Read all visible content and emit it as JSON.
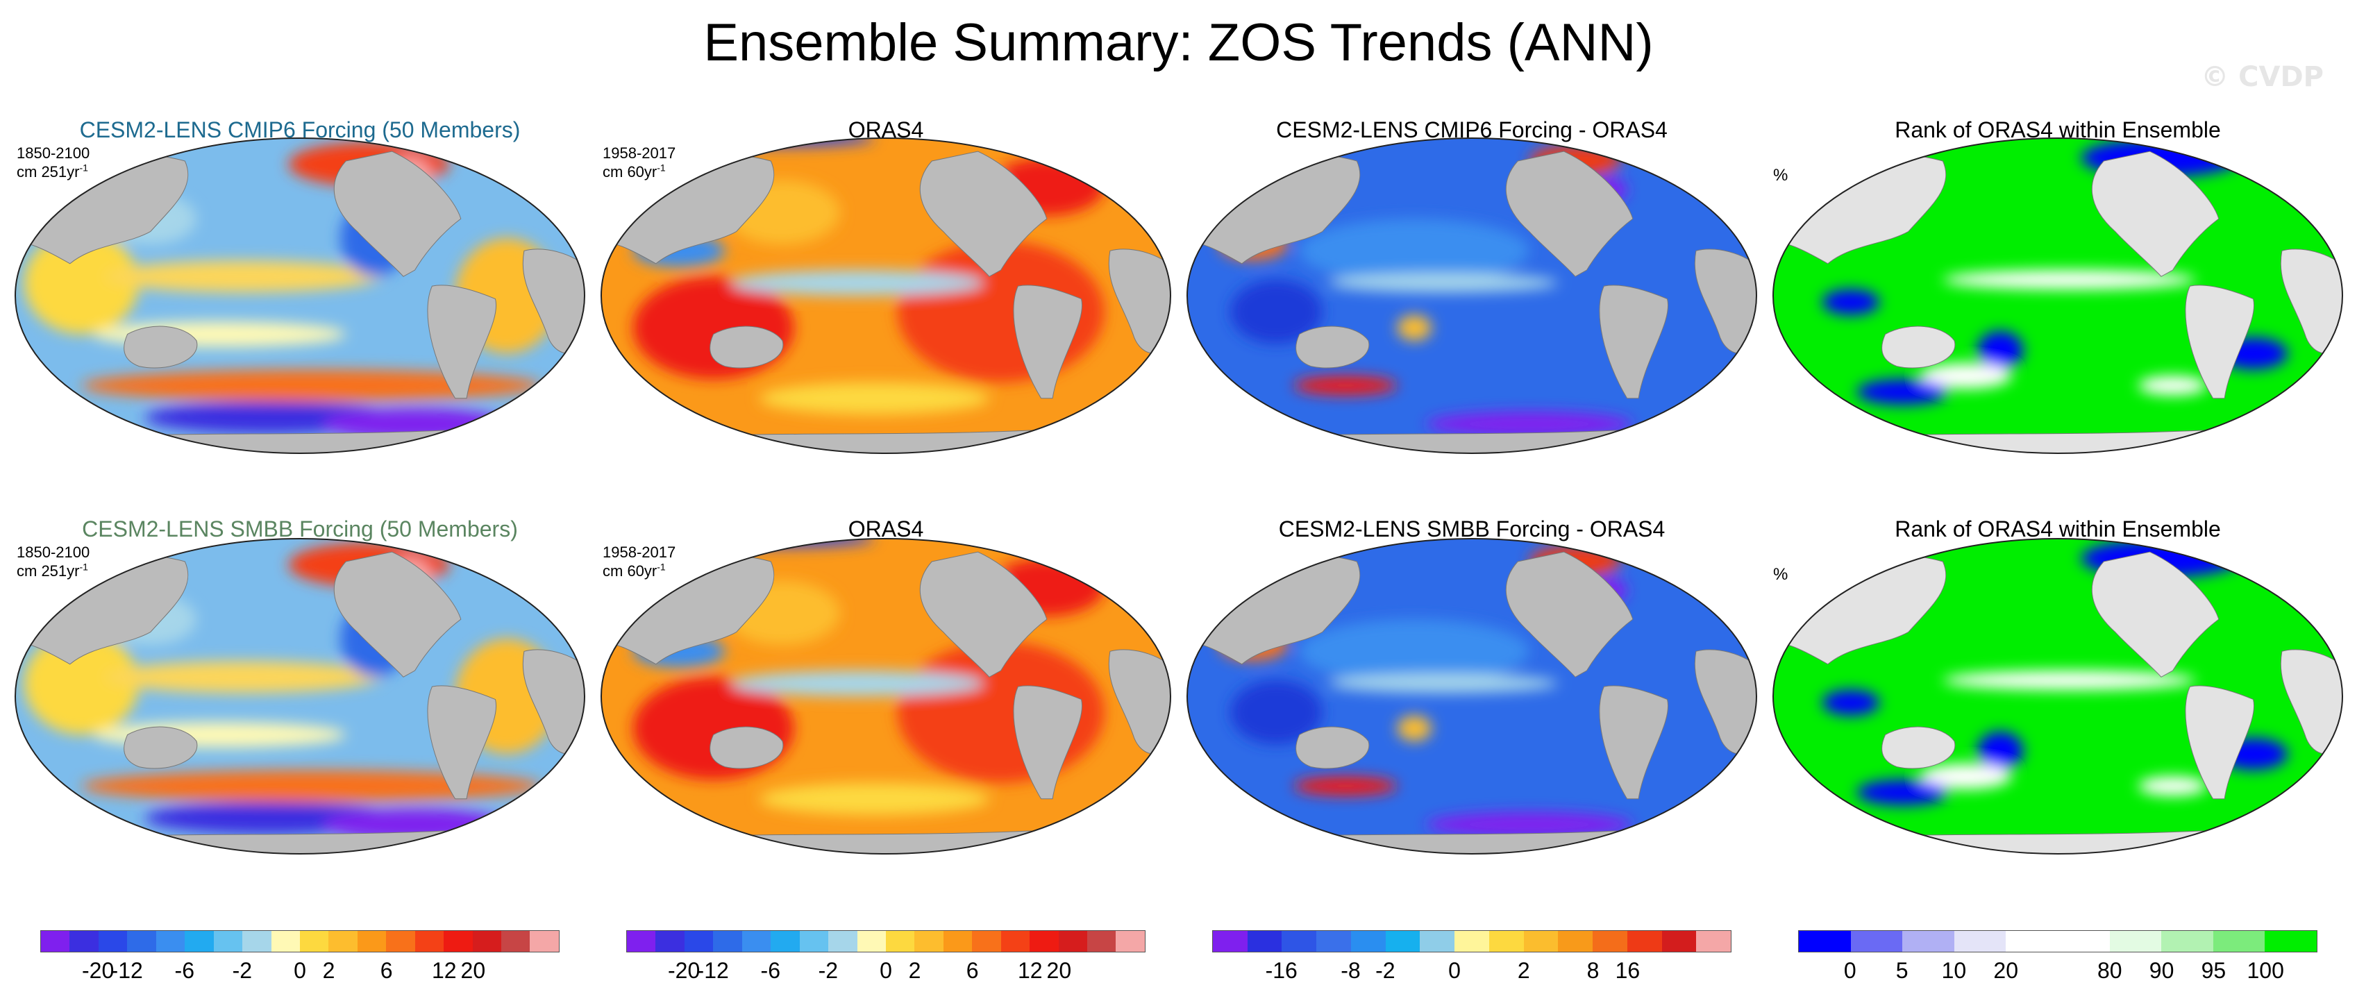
{
  "title": "Ensemble Summary: ZOS Trends (ANN)",
  "watermark": "© CVDP",
  "rows": [
    {
      "panels": [
        {
          "title": "CESM2-LENS CMIP6 Forcing (50 Members)",
          "title_color": "#1d6a8f",
          "period": "1850-2100",
          "units": "cm 251yr",
          "units_exp": "-1",
          "style": "mean"
        },
        {
          "title": "ORAS4",
          "title_color": "#000000",
          "period": "1958-2017",
          "units": "cm 60yr",
          "units_exp": "-1",
          "style": "obs"
        },
        {
          "title": "CESM2-LENS CMIP6 Forcing - ORAS4",
          "title_color": "#000000",
          "style": "diff"
        },
        {
          "title": "Rank of ORAS4 within Ensemble",
          "title_color": "#000000",
          "units": "%",
          "style": "rank"
        }
      ]
    },
    {
      "panels": [
        {
          "title": "CESM2-LENS SMBB Forcing (50 Members)",
          "title_color": "#5a8560",
          "period": "1850-2100",
          "units": "cm 251yr",
          "units_exp": "-1",
          "style": "mean"
        },
        {
          "title": "ORAS4",
          "title_color": "#000000",
          "period": "1958-2017",
          "units": "cm 60yr",
          "units_exp": "-1",
          "style": "obs"
        },
        {
          "title": "CESM2-LENS SMBB Forcing - ORAS4",
          "title_color": "#000000",
          "style": "diff"
        },
        {
          "title": "Rank of ORAS4 within Ensemble",
          "title_color": "#000000",
          "units": "%",
          "style": "rank"
        }
      ]
    }
  ],
  "colorbars": [
    {
      "colors": [
        "#7f20ee",
        "#3b2fe0",
        "#2a48e8",
        "#2e6be8",
        "#3a8ef0",
        "#22aaf0",
        "#66c2f0",
        "#a6d6ea",
        "#fff9b5",
        "#fdd93f",
        "#fdbd2e",
        "#fb9919",
        "#f8711a",
        "#f44116",
        "#ee1b12",
        "#d61d1d",
        "#c74545",
        "#f4a7a7"
      ],
      "labels": [
        "-20",
        "-12",
        "-6",
        "-2",
        "0",
        "2",
        "6",
        "12",
        "20"
      ]
    },
    {
      "colors": [
        "#7f20ee",
        "#3b2fe0",
        "#2a48e8",
        "#2e6be8",
        "#3a8ef0",
        "#22aaf0",
        "#66c2f0",
        "#a6d6ea",
        "#fff9b5",
        "#fdd93f",
        "#fdbd2e",
        "#fb9919",
        "#f8711a",
        "#f44116",
        "#ee1b12",
        "#d61d1d",
        "#c74545",
        "#f4a7a7"
      ],
      "labels": [
        "-20",
        "-12",
        "-6",
        "-2",
        "0",
        "2",
        "6",
        "12",
        "20"
      ]
    },
    {
      "colors": [
        "#7f20ee",
        "#2a30e0",
        "#2e55e6",
        "#3a70ea",
        "#2a8ef0",
        "#16b0ee",
        "#8fcde8",
        "#fff59a",
        "#fdd93f",
        "#fbbd2e",
        "#f89a1a",
        "#f46d1a",
        "#ee3a16",
        "#d31d1d",
        "#f4a7a7"
      ],
      "labels": [
        "-16",
        "-8",
        "-2",
        "0",
        "2",
        "8",
        "16"
      ]
    },
    {
      "colors": [
        "#0000ff",
        "#6a6af4",
        "#b0b0f4",
        "#e4e4f8",
        "#ffffff",
        "#ffffff",
        "#e3fbe3",
        "#b2f2b2",
        "#7ceb7c",
        "#00ee00"
      ],
      "labels": [
        "0",
        "5",
        "10",
        "20",
        "80",
        "90",
        "95",
        "100"
      ]
    }
  ]
}
